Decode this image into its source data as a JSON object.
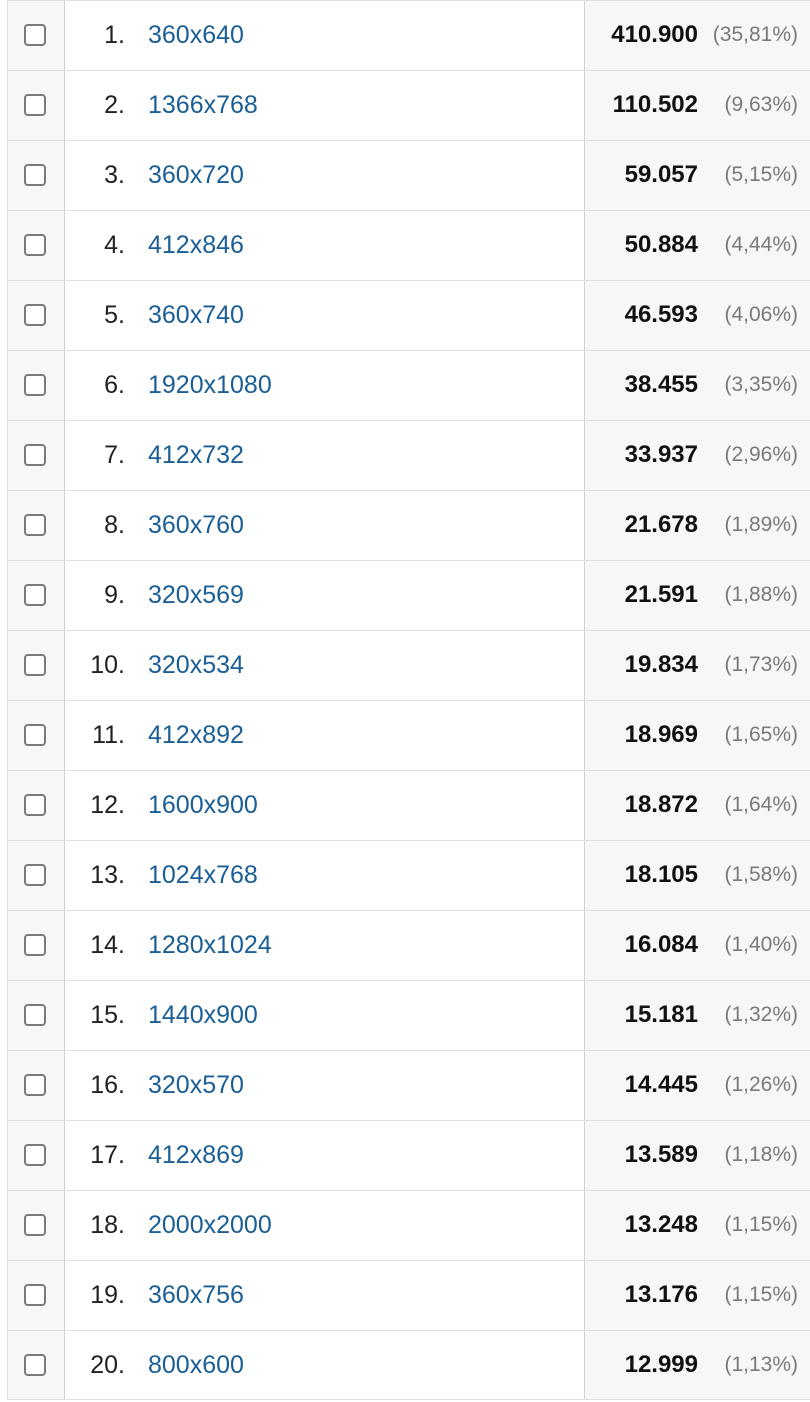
{
  "rows": [
    {
      "rank": "1.",
      "resolution": "360x640",
      "value": "410.900",
      "percent": "(35,81%)"
    },
    {
      "rank": "2.",
      "resolution": "1366x768",
      "value": "110.502",
      "percent": "(9,63%)"
    },
    {
      "rank": "3.",
      "resolution": "360x720",
      "value": "59.057",
      "percent": "(5,15%)"
    },
    {
      "rank": "4.",
      "resolution": "412x846",
      "value": "50.884",
      "percent": "(4,44%)"
    },
    {
      "rank": "5.",
      "resolution": "360x740",
      "value": "46.593",
      "percent": "(4,06%)"
    },
    {
      "rank": "6.",
      "resolution": "1920x1080",
      "value": "38.455",
      "percent": "(3,35%)"
    },
    {
      "rank": "7.",
      "resolution": "412x732",
      "value": "33.937",
      "percent": "(2,96%)"
    },
    {
      "rank": "8.",
      "resolution": "360x760",
      "value": "21.678",
      "percent": "(1,89%)"
    },
    {
      "rank": "9.",
      "resolution": "320x569",
      "value": "21.591",
      "percent": "(1,88%)"
    },
    {
      "rank": "10.",
      "resolution": "320x534",
      "value": "19.834",
      "percent": "(1,73%)"
    },
    {
      "rank": "11.",
      "resolution": "412x892",
      "value": "18.969",
      "percent": "(1,65%)"
    },
    {
      "rank": "12.",
      "resolution": "1600x900",
      "value": "18.872",
      "percent": "(1,64%)"
    },
    {
      "rank": "13.",
      "resolution": "1024x768",
      "value": "18.105",
      "percent": "(1,58%)"
    },
    {
      "rank": "14.",
      "resolution": "1280x1024",
      "value": "16.084",
      "percent": "(1,40%)"
    },
    {
      "rank": "15.",
      "resolution": "1440x900",
      "value": "15.181",
      "percent": "(1,32%)"
    },
    {
      "rank": "16.",
      "resolution": "320x570",
      "value": "14.445",
      "percent": "(1,26%)"
    },
    {
      "rank": "17.",
      "resolution": "412x869",
      "value": "13.589",
      "percent": "(1,18%)"
    },
    {
      "rank": "18.",
      "resolution": "2000x2000",
      "value": "13.248",
      "percent": "(1,15%)"
    },
    {
      "rank": "19.",
      "resolution": "360x756",
      "value": "13.176",
      "percent": "(1,15%)"
    },
    {
      "rank": "20.",
      "resolution": "800x600",
      "value": "12.999",
      "percent": "(1,13%)"
    }
  ],
  "colors": {
    "link": "#1a5e96",
    "value": "#111111",
    "percent": "#7a7a7a",
    "cell_bg": "#f7f7f7",
    "border": "#e0e0e0"
  }
}
